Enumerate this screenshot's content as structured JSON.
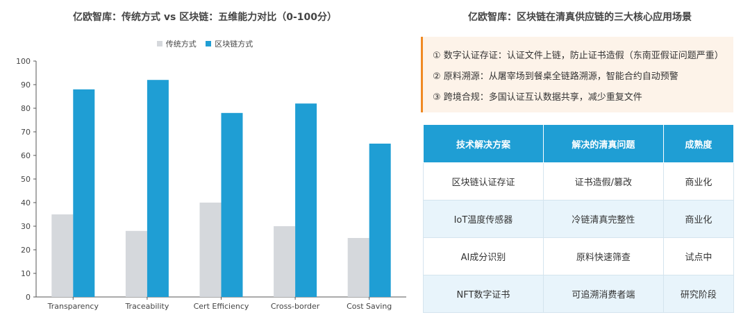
{
  "left": {
    "title": "亿欧智库：传统方式 vs 区块链：五维能力对比（0-100分）"
  },
  "chart_data": {
    "type": "bar",
    "title": "亿欧智库：传统方式 vs 区块链：五维能力对比（0-100分）",
    "categories": [
      "Transparency",
      "Traceability",
      "Cert Efficiency",
      "Cross-border",
      "Cost Saving"
    ],
    "series": [
      {
        "name": "传统方式",
        "values": [
          35,
          28,
          40,
          30,
          25
        ],
        "color": "#d5d8dc"
      },
      {
        "name": "区块链方式",
        "values": [
          88,
          92,
          78,
          82,
          65
        ],
        "color": "#1f9ed4"
      }
    ],
    "ylim": [
      0,
      100
    ],
    "yticks": [
      0,
      10,
      20,
      30,
      40,
      50,
      60,
      70,
      80,
      90,
      100
    ],
    "grid": false,
    "legend_position": "top-center",
    "xlabel": "",
    "ylabel": ""
  },
  "right": {
    "title": "亿欧智库：区块链在清真供应链的三大核心应用场景",
    "callout": [
      "① 数字认证存证：认证文件上链，防止证书造假（东南亚假证问题严重）",
      "② 原料溯源：从屠宰场到餐桌全链路溯源，智能合约自动预警",
      "③ 跨境合规：多国认证互认数据共享，减少重复文件"
    ],
    "table": {
      "headers": [
        "技术解决方案",
        "解决的清真问题",
        "成熟度"
      ],
      "rows": [
        [
          "区块链认证存证",
          "证书造假/篡改",
          "商业化"
        ],
        [
          "IoT温度传感器",
          "冷链清真完整性",
          "商业化"
        ],
        [
          "AI成分识别",
          "原料快速筛查",
          "试点中"
        ],
        [
          "NFT数字证书",
          "可追溯消费者端",
          "研究阶段"
        ]
      ]
    }
  }
}
